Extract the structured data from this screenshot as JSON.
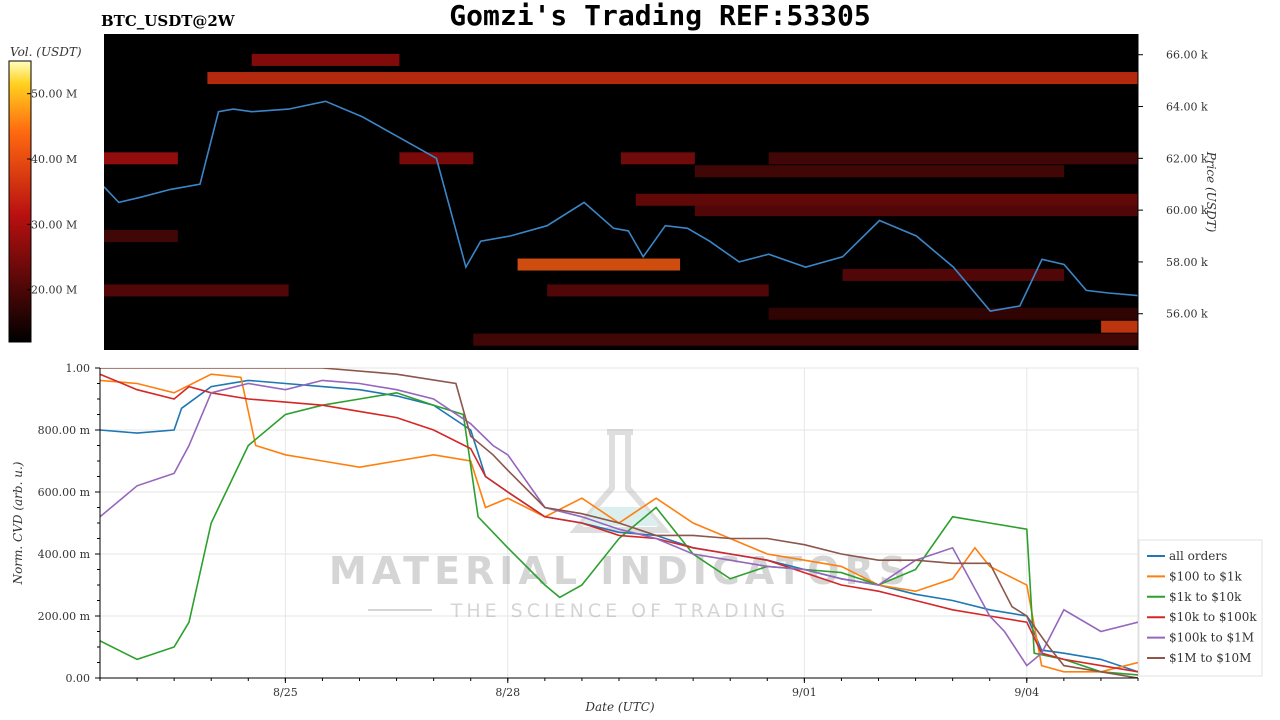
{
  "header": {
    "symbol": "BTC_USDT@2W",
    "title": "Gomzi's Trading REF:53305"
  },
  "watermark": {
    "line1": "MATERIAL INDICATORS",
    "line2": "THE SCIENCE OF TRADING"
  },
  "colors": {
    "price_line": "#3a86c8",
    "heat_low": "#000000",
    "heat_mid": "#b81010",
    "heat_high": "#ffd21f",
    "heat_top": "#ffffc0"
  },
  "chart_data": [
    {
      "type": "heatmap",
      "title": "Gomzi's Trading REF:53305",
      "colorbar": {
        "label": "Vol. (USDT)",
        "ticks": [
          "20.00 M",
          "30.00 M",
          "40.00 M",
          "50.00 M"
        ],
        "tick_values": [
          20,
          30,
          40,
          50
        ],
        "range": [
          12,
          55
        ]
      },
      "ylabel": "Price (USDT)",
      "y_ticks": [
        "56.00 k",
        "58.00 k",
        "60.00 k",
        "62.00 k",
        "64.00 k",
        "66.00 k"
      ],
      "y_tick_values": [
        56000,
        58000,
        60000,
        62000,
        64000,
        66000
      ],
      "ylim": [
        54600,
        66800
      ],
      "xlim": [
        0,
        14
      ],
      "price_line": {
        "x": [
          0,
          0.2,
          0.5,
          0.9,
          1.3,
          1.55,
          1.75,
          2,
          2.5,
          3,
          3.5,
          4,
          4.5,
          4.9,
          5.1,
          5.5,
          6,
          6.5,
          6.9,
          7.1,
          7.3,
          7.6,
          7.9,
          8.2,
          8.6,
          9,
          9.5,
          10,
          10.5,
          11,
          11.5,
          12,
          12.4,
          12.7,
          13,
          13.3,
          13.6,
          14
        ],
        "y": [
          60900,
          60300,
          60500,
          60800,
          61000,
          63800,
          63900,
          63800,
          63900,
          64200,
          63600,
          62800,
          62000,
          57800,
          58800,
          59000,
          59400,
          60300,
          59300,
          59200,
          58200,
          59400,
          59300,
          58800,
          58000,
          58300,
          57800,
          58200,
          59600,
          59000,
          57800,
          56100,
          56300,
          58100,
          57900,
          56900,
          56800,
          56700
        ]
      },
      "volume_bands": [
        {
          "price": 65100,
          "x_start": 1.4,
          "x_end": 14,
          "volume": 36
        },
        {
          "price": 65800,
          "x_start": 2,
          "x_end": 4,
          "volume": 28
        },
        {
          "price": 62000,
          "x_start": 0,
          "x_end": 1,
          "volume": 30
        },
        {
          "price": 62000,
          "x_start": 4,
          "x_end": 5,
          "volume": 27
        },
        {
          "price": 62000,
          "x_start": 7,
          "x_end": 8,
          "volume": 26
        },
        {
          "price": 62000,
          "x_start": 9,
          "x_end": 14,
          "volume": 20
        },
        {
          "price": 61500,
          "x_start": 8,
          "x_end": 13,
          "volume": 20
        },
        {
          "price": 60400,
          "x_start": 7.2,
          "x_end": 14,
          "volume": 24
        },
        {
          "price": 60000,
          "x_start": 8,
          "x_end": 14,
          "volume": 22
        },
        {
          "price": 59000,
          "x_start": 0,
          "x_end": 1,
          "volume": 20
        },
        {
          "price": 57900,
          "x_start": 5.6,
          "x_end": 7.8,
          "volume": 42
        },
        {
          "price": 57500,
          "x_start": 10,
          "x_end": 13,
          "volume": 22
        },
        {
          "price": 56900,
          "x_start": 0,
          "x_end": 2.5,
          "volume": 22
        },
        {
          "price": 56900,
          "x_start": 6,
          "x_end": 9,
          "volume": 22
        },
        {
          "price": 56000,
          "x_start": 9,
          "x_end": 14,
          "volume": 18
        },
        {
          "price": 55500,
          "x_start": 13.5,
          "x_end": 14,
          "volume": 38
        },
        {
          "price": 55000,
          "x_start": 5,
          "x_end": 14,
          "volume": 20
        }
      ]
    },
    {
      "type": "line",
      "xlabel": "Date (UTC)",
      "ylabel": "Norm. CVD (arb. u.)",
      "x_ticks": [
        "8/25",
        "8/28",
        "9/01",
        "9/04"
      ],
      "x_tick_values": [
        2.5,
        5.5,
        9.5,
        12.5
      ],
      "xlim": [
        0,
        14
      ],
      "y_ticks": [
        "0.00",
        "200.00 m",
        "400.00 m",
        "600.00 m",
        "800.00 m",
        "1.00"
      ],
      "y_tick_values": [
        0,
        0.2,
        0.4,
        0.6,
        0.8,
        1.0
      ],
      "ylim": [
        0,
        1
      ],
      "legend_position": "right",
      "series": [
        {
          "name": "all orders",
          "color": "#1f77b4",
          "x": [
            0,
            0.5,
            1,
            1.1,
            1.5,
            2,
            2.5,
            3,
            3.5,
            4,
            4.5,
            5,
            5.2,
            5.5,
            6,
            6.5,
            7,
            7.5,
            8,
            8.5,
            9,
            9.5,
            10,
            10.5,
            11,
            11.5,
            12,
            12.5,
            12.7,
            13,
            13.5,
            14
          ],
          "y": [
            0.8,
            0.79,
            0.8,
            0.87,
            0.94,
            0.96,
            0.95,
            0.94,
            0.93,
            0.91,
            0.88,
            0.8,
            0.65,
            0.6,
            0.52,
            0.5,
            0.47,
            0.46,
            0.42,
            0.4,
            0.38,
            0.35,
            0.32,
            0.3,
            0.27,
            0.25,
            0.22,
            0.2,
            0.09,
            0.08,
            0.06,
            0.02
          ]
        },
        {
          "name": "$100 to $1k",
          "color": "#ff7f0e",
          "x": [
            0,
            0.5,
            1,
            1.5,
            1.9,
            2.1,
            2.5,
            3,
            3.5,
            4,
            4.5,
            5,
            5.2,
            5.5,
            6,
            6.5,
            7,
            7.5,
            8,
            8.5,
            9,
            9.5,
            10,
            10.5,
            11,
            11.5,
            11.8,
            12,
            12.5,
            12.7,
            13,
            13.5,
            14
          ],
          "y": [
            0.96,
            0.95,
            0.92,
            0.98,
            0.97,
            0.75,
            0.72,
            0.7,
            0.68,
            0.7,
            0.72,
            0.7,
            0.55,
            0.58,
            0.52,
            0.58,
            0.5,
            0.58,
            0.5,
            0.45,
            0.4,
            0.38,
            0.36,
            0.3,
            0.28,
            0.32,
            0.42,
            0.36,
            0.3,
            0.04,
            0.02,
            0.02,
            0.05
          ]
        },
        {
          "name": "$1k to $10k",
          "color": "#2ca02c",
          "x": [
            0,
            0.5,
            1,
            1.2,
            1.5,
            2,
            2.5,
            3,
            3.5,
            4,
            4.5,
            4.9,
            5.1,
            5.5,
            6,
            6.2,
            6.5,
            7,
            7.5,
            8,
            8.5,
            9,
            9.5,
            10,
            10.5,
            11,
            11.5,
            12,
            12.5,
            12.6,
            13,
            13.5,
            14
          ],
          "y": [
            0.12,
            0.06,
            0.1,
            0.18,
            0.5,
            0.75,
            0.85,
            0.88,
            0.9,
            0.92,
            0.88,
            0.85,
            0.52,
            0.42,
            0.3,
            0.26,
            0.3,
            0.45,
            0.55,
            0.4,
            0.32,
            0.36,
            0.35,
            0.34,
            0.3,
            0.35,
            0.52,
            0.5,
            0.48,
            0.08,
            0.06,
            0.02,
            0.01
          ]
        },
        {
          "name": "$10k to $100k",
          "color": "#d62728",
          "x": [
            0,
            0.5,
            1,
            1.2,
            1.5,
            2,
            2.5,
            3,
            3.5,
            4,
            4.5,
            5,
            5.2,
            5.5,
            6,
            6.5,
            7,
            7.5,
            8,
            8.5,
            9,
            9.5,
            10,
            10.5,
            11,
            11.5,
            12,
            12.5,
            12.7,
            13,
            13.5,
            14
          ],
          "y": [
            0.98,
            0.93,
            0.9,
            0.94,
            0.92,
            0.9,
            0.89,
            0.88,
            0.86,
            0.84,
            0.8,
            0.74,
            0.65,
            0.6,
            0.52,
            0.5,
            0.46,
            0.45,
            0.42,
            0.4,
            0.38,
            0.34,
            0.3,
            0.28,
            0.25,
            0.22,
            0.2,
            0.18,
            0.08,
            0.06,
            0.04,
            0.02
          ]
        },
        {
          "name": "$100k to $1M",
          "color": "#9467bd",
          "x": [
            0,
            0.5,
            1,
            1.2,
            1.5,
            2,
            2.5,
            3,
            3.5,
            4,
            4.5,
            5,
            5.3,
            5.5,
            6,
            6.5,
            7,
            7.5,
            8,
            8.5,
            9,
            9.5,
            10,
            10.5,
            11,
            11.5,
            12,
            12.2,
            12.5,
            12.7,
            13,
            13.5,
            14
          ],
          "y": [
            0.52,
            0.62,
            0.66,
            0.75,
            0.92,
            0.95,
            0.93,
            0.96,
            0.95,
            0.93,
            0.9,
            0.82,
            0.75,
            0.72,
            0.55,
            0.52,
            0.48,
            0.45,
            0.4,
            0.38,
            0.36,
            0.35,
            0.32,
            0.3,
            0.38,
            0.42,
            0.2,
            0.15,
            0.04,
            0.08,
            0.22,
            0.15,
            0.18
          ]
        },
        {
          "name": "$1M to $10M",
          "color": "#8c564b",
          "x": [
            0,
            0.5,
            1,
            2,
            3,
            4,
            4.8,
            5,
            5.3,
            5.5,
            6,
            6.5,
            7,
            7.5,
            8,
            8.5,
            9,
            9.5,
            10,
            10.5,
            11,
            11.5,
            12,
            12.3,
            12.5,
            12.8,
            13,
            13.5,
            14
          ],
          "y": [
            1.0,
            1.0,
            1.0,
            1.0,
            1.0,
            0.98,
            0.95,
            0.78,
            0.72,
            0.67,
            0.55,
            0.53,
            0.5,
            0.46,
            0.46,
            0.45,
            0.45,
            0.43,
            0.4,
            0.38,
            0.38,
            0.37,
            0.37,
            0.23,
            0.2,
            0.1,
            0.04,
            0.02,
            0.0
          ]
        }
      ]
    }
  ]
}
